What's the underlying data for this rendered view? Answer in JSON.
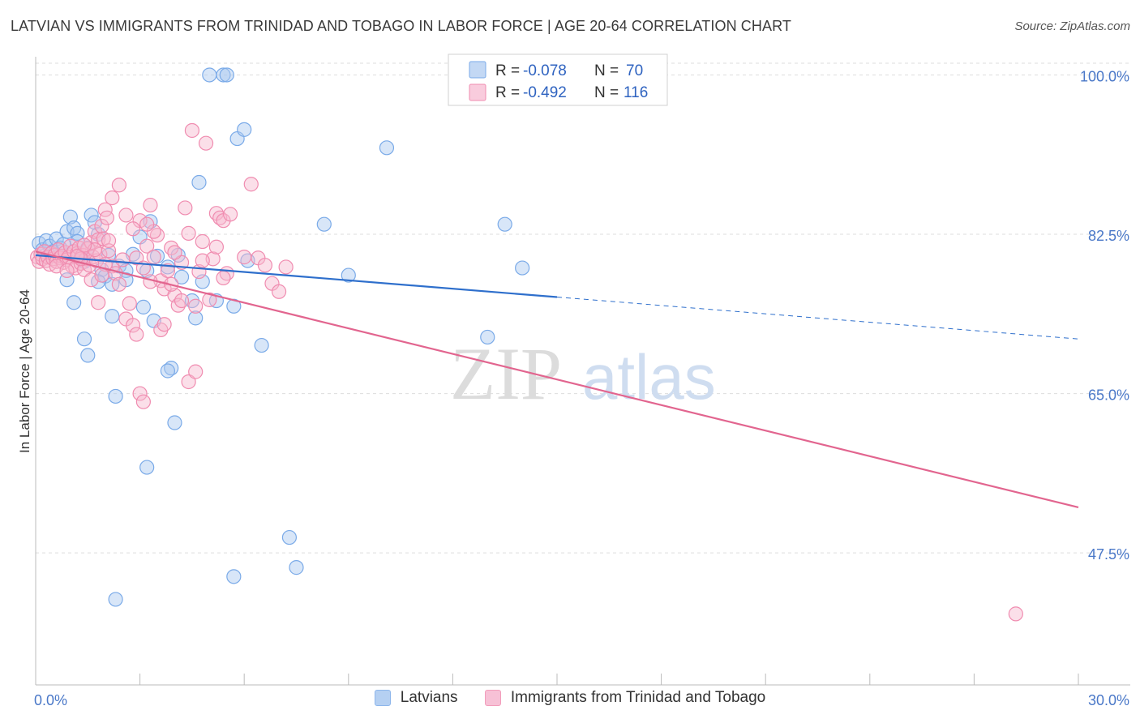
{
  "chart_data": {
    "type": "scatter",
    "title": "LATVIAN VS IMMIGRANTS FROM TRINIDAD AND TOBAGO IN LABOR FORCE | AGE 20-64 CORRELATION CHART",
    "source": "Source: ZipAtlas.com",
    "ylabel": "In Labor Force | Age 20-64",
    "xlim": [
      0,
      30
    ],
    "ylim": [
      33,
      102
    ],
    "x_tick_labels": {
      "left": "0.0%",
      "right": "30.0%"
    },
    "y_ticks": [
      {
        "value": 100,
        "label": "100.0%"
      },
      {
        "value": 82.5,
        "label": "82.5%"
      },
      {
        "value": 65,
        "label": "65.0%"
      },
      {
        "value": 47.5,
        "label": "47.5%"
      }
    ],
    "watermark": {
      "part1": "ZIP",
      "part2": "atlas"
    },
    "legend": {
      "series": [
        {
          "r_label": "R =",
          "r_value": "-0.078",
          "n_label": "N =",
          "n_value": "70"
        },
        {
          "r_label": "R =",
          "r_value": "-0.492",
          "n_label": "N =",
          "n_value": "116"
        }
      ]
    },
    "series": [
      {
        "name": "Latvians",
        "color": "#7aaae8",
        "fill": "#a9c8f0",
        "line_color": "#2e6fcc",
        "trend": {
          "x0": 0,
          "y0": 80.2,
          "x1": 15,
          "y1": 75.6,
          "dash_x1": 30,
          "dash_y1": 71.0
        },
        "points": [
          [
            0.1,
            81.5
          ],
          [
            0.2,
            80.8
          ],
          [
            0.3,
            81.8
          ],
          [
            0.4,
            81.2
          ],
          [
            0.5,
            80.6
          ],
          [
            0.6,
            82.0
          ],
          [
            0.7,
            81.0
          ],
          [
            0.8,
            81.4
          ],
          [
            0.9,
            82.8
          ],
          [
            1.0,
            84.4
          ],
          [
            1.1,
            83.2
          ],
          [
            1.2,
            82.6
          ],
          [
            1.3,
            80.0
          ],
          [
            1.4,
            79.5
          ],
          [
            1.5,
            81.0
          ],
          [
            1.6,
            84.6
          ],
          [
            1.7,
            83.8
          ],
          [
            1.8,
            82.5
          ],
          [
            1.9,
            78.6
          ],
          [
            2.0,
            77.9
          ],
          [
            2.1,
            80.2
          ],
          [
            2.2,
            77.0
          ],
          [
            2.4,
            79.0
          ],
          [
            2.6,
            78.5
          ],
          [
            2.8,
            80.3
          ],
          [
            3.0,
            82.2
          ],
          [
            3.1,
            74.5
          ],
          [
            3.2,
            78.5
          ],
          [
            3.3,
            83.9
          ],
          [
            3.5,
            80.1
          ],
          [
            0.9,
            77.5
          ],
          [
            1.1,
            75.0
          ],
          [
            1.4,
            71.0
          ],
          [
            1.5,
            69.2
          ],
          [
            1.8,
            77.3
          ],
          [
            2.2,
            73.5
          ],
          [
            2.3,
            64.7
          ],
          [
            2.6,
            77.5
          ],
          [
            3.4,
            73.0
          ],
          [
            3.8,
            78.9
          ],
          [
            3.9,
            67.8
          ],
          [
            4.0,
            61.8
          ],
          [
            4.1,
            80.2
          ],
          [
            4.2,
            77.8
          ],
          [
            4.5,
            75.2
          ],
          [
            4.6,
            73.3
          ],
          [
            4.7,
            88.2
          ],
          [
            4.8,
            77.3
          ],
          [
            5.0,
            100.0
          ],
          [
            5.2,
            75.2
          ],
          [
            5.4,
            100.0
          ],
          [
            5.5,
            100.0
          ],
          [
            5.7,
            74.6
          ],
          [
            5.8,
            93.0
          ],
          [
            6.0,
            94.0
          ],
          [
            6.1,
            79.6
          ],
          [
            6.5,
            70.3
          ],
          [
            7.3,
            49.2
          ],
          [
            7.5,
            45.9
          ],
          [
            8.3,
            83.6
          ],
          [
            9.0,
            78.0
          ],
          [
            10.1,
            92.0
          ],
          [
            13.0,
            71.2
          ],
          [
            13.5,
            83.6
          ],
          [
            14.0,
            78.8
          ],
          [
            2.3,
            42.4
          ],
          [
            3.2,
            56.9
          ],
          [
            5.7,
            44.9
          ],
          [
            3.8,
            67.5
          ],
          [
            1.2,
            81.7
          ]
        ]
      },
      {
        "name": "Immigrants from Trinidad and Tobago",
        "color": "#f08cb0",
        "fill": "#f6b7cf",
        "line_color": "#e2658f",
        "trend": {
          "x0": 0,
          "y0": 80.6,
          "x1": 30,
          "y1": 52.5
        },
        "points": [
          [
            0.05,
            80.0
          ],
          [
            0.1,
            79.5
          ],
          [
            0.15,
            80.3
          ],
          [
            0.2,
            79.8
          ],
          [
            0.25,
            80.6
          ],
          [
            0.3,
            79.6
          ],
          [
            0.35,
            80.0
          ],
          [
            0.4,
            79.2
          ],
          [
            0.45,
            80.4
          ],
          [
            0.5,
            79.8
          ],
          [
            0.55,
            80.2
          ],
          [
            0.6,
            79.5
          ],
          [
            0.65,
            80.8
          ],
          [
            0.7,
            79.9
          ],
          [
            0.75,
            80.1
          ],
          [
            0.8,
            79.4
          ],
          [
            0.85,
            80.5
          ],
          [
            0.9,
            79.7
          ],
          [
            0.95,
            80.0
          ],
          [
            1.0,
            81.2
          ],
          [
            1.05,
            79.0
          ],
          [
            1.1,
            80.6
          ],
          [
            1.15,
            78.8
          ],
          [
            1.2,
            80.4
          ],
          [
            1.25,
            81.0
          ],
          [
            1.3,
            79.3
          ],
          [
            1.35,
            80.2
          ],
          [
            1.4,
            78.6
          ],
          [
            1.45,
            79.8
          ],
          [
            1.5,
            80.9
          ],
          [
            1.55,
            79.1
          ],
          [
            1.6,
            81.6
          ],
          [
            1.65,
            80.0
          ],
          [
            1.7,
            82.8
          ],
          [
            1.75,
            79.6
          ],
          [
            1.8,
            81.9
          ],
          [
            1.85,
            80.3
          ],
          [
            1.9,
            83.4
          ],
          [
            1.95,
            82.0
          ],
          [
            2.0,
            85.2
          ],
          [
            2.05,
            84.3
          ],
          [
            2.1,
            80.7
          ],
          [
            2.2,
            79.0
          ],
          [
            2.3,
            78.2
          ],
          [
            2.4,
            77.0
          ],
          [
            2.5,
            79.7
          ],
          [
            2.6,
            73.2
          ],
          [
            2.7,
            74.9
          ],
          [
            2.8,
            72.5
          ],
          [
            2.9,
            79.9
          ],
          [
            3.0,
            84.0
          ],
          [
            3.1,
            78.8
          ],
          [
            3.2,
            81.2
          ],
          [
            3.3,
            85.7
          ],
          [
            3.4,
            80.0
          ],
          [
            3.5,
            82.4
          ],
          [
            3.6,
            77.4
          ],
          [
            3.7,
            76.5
          ],
          [
            3.8,
            78.5
          ],
          [
            3.9,
            81.0
          ],
          [
            4.0,
            75.8
          ],
          [
            4.1,
            74.7
          ],
          [
            4.2,
            79.4
          ],
          [
            4.3,
            85.4
          ],
          [
            4.4,
            82.6
          ],
          [
            4.5,
            93.9
          ],
          [
            4.6,
            74.6
          ],
          [
            4.7,
            78.4
          ],
          [
            4.8,
            81.7
          ],
          [
            4.9,
            92.5
          ],
          [
            5.0,
            75.3
          ],
          [
            5.1,
            79.8
          ],
          [
            5.2,
            84.8
          ],
          [
            5.3,
            84.3
          ],
          [
            5.4,
            84.0
          ],
          [
            5.5,
            78.2
          ],
          [
            5.6,
            84.7
          ],
          [
            6.0,
            80.0
          ],
          [
            6.2,
            88.0
          ],
          [
            6.4,
            79.9
          ],
          [
            6.6,
            79.1
          ],
          [
            6.8,
            77.1
          ],
          [
            7.0,
            76.2
          ],
          [
            7.2,
            78.9
          ],
          [
            1.8,
            75.0
          ],
          [
            2.2,
            86.5
          ],
          [
            2.4,
            87.9
          ],
          [
            1.6,
            77.5
          ],
          [
            2.0,
            79.2
          ],
          [
            1.3,
            79.8
          ],
          [
            2.9,
            71.5
          ],
          [
            3.0,
            65.0
          ],
          [
            3.1,
            64.1
          ],
          [
            3.6,
            72.0
          ],
          [
            3.7,
            72.6
          ],
          [
            3.9,
            77.0
          ],
          [
            4.0,
            80.5
          ],
          [
            3.4,
            82.8
          ],
          [
            3.2,
            83.6
          ],
          [
            2.6,
            84.6
          ],
          [
            2.8,
            83.1
          ],
          [
            4.2,
            75.2
          ],
          [
            4.4,
            66.3
          ],
          [
            4.6,
            67.4
          ],
          [
            4.8,
            79.6
          ],
          [
            5.2,
            81.1
          ],
          [
            5.4,
            77.7
          ],
          [
            3.3,
            77.3
          ],
          [
            2.1,
            81.8
          ],
          [
            1.9,
            78.0
          ],
          [
            1.7,
            80.8
          ],
          [
            28.2,
            40.8
          ],
          [
            0.6,
            79.0
          ],
          [
            0.9,
            78.5
          ],
          [
            1.2,
            80.1
          ],
          [
            1.4,
            81.3
          ]
        ]
      }
    ]
  }
}
